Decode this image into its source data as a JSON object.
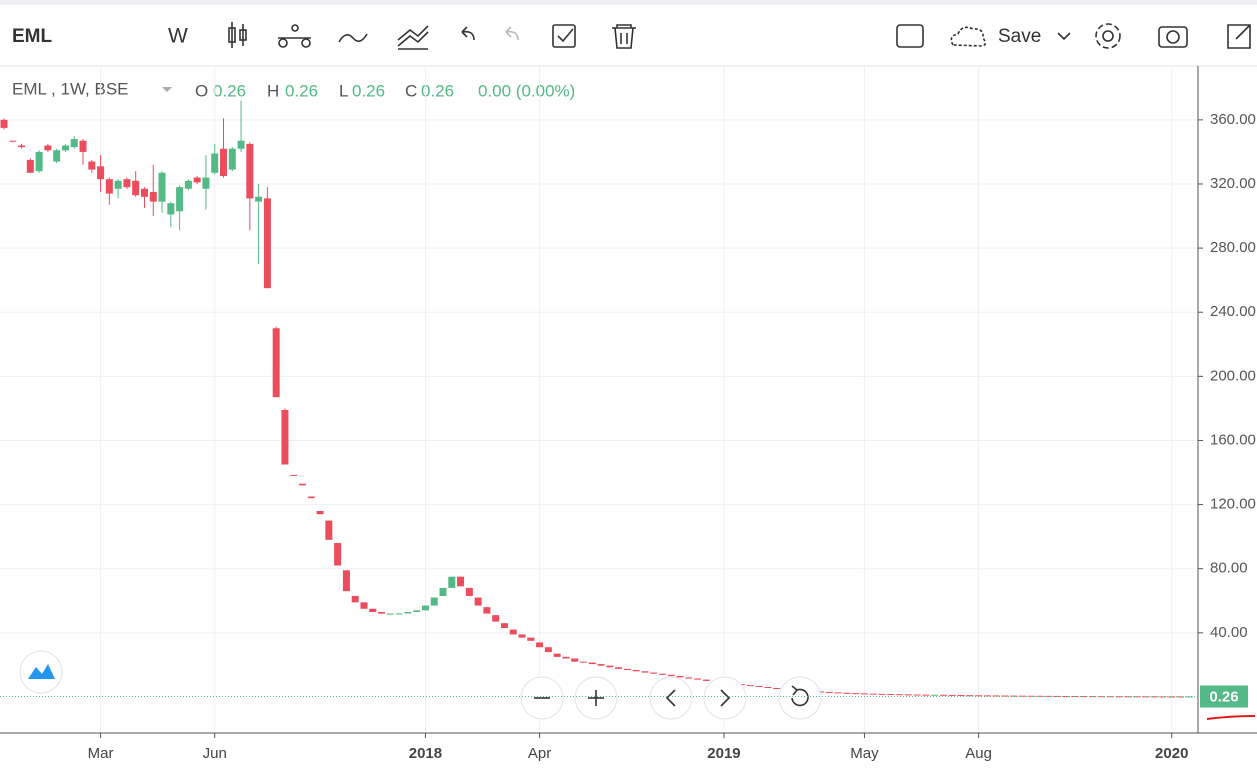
{
  "toolbar": {
    "symbol": "EML",
    "interval": "W",
    "save": "Save"
  },
  "chart_data": {
    "type": "candlestick",
    "legend": {
      "title": "EML , 1W, BSE",
      "open_label": "O",
      "open": 0.26,
      "high_label": "H",
      "high": 0.26,
      "low_label": "L",
      "low": 0.26,
      "close_label": "C",
      "close": 0.26,
      "change": "0.00 (0.00%)"
    },
    "categories": [
      null,
      null,
      null,
      null,
      null,
      null,
      null,
      null,
      null,
      null,
      null,
      "Mar",
      null,
      null,
      null,
      null,
      null,
      null,
      null,
      null,
      null,
      null,
      null,
      null,
      "Jun",
      null,
      null,
      null,
      null,
      null,
      null,
      null,
      null,
      null,
      null,
      null,
      null,
      null,
      null,
      null,
      null,
      null,
      null,
      null,
      null,
      null,
      null,
      null,
      "2018",
      null,
      null,
      null,
      null,
      null,
      null,
      null,
      null,
      null,
      null,
      null,
      null,
      "Apr",
      null,
      null,
      null,
      null,
      null,
      null,
      null,
      null,
      null,
      null,
      null,
      null,
      null,
      null,
      null,
      null,
      null,
      null,
      null,
      null,
      "2019",
      null,
      null,
      null,
      null,
      null,
      null,
      null,
      null,
      null,
      null,
      null,
      null,
      null,
      null,
      null,
      "May",
      null,
      null,
      null,
      null,
      null,
      null,
      null,
      null,
      null,
      null,
      null,
      null,
      "Aug",
      null,
      null,
      null,
      null,
      null,
      null,
      null,
      null,
      null,
      null,
      null,
      null,
      null,
      null,
      null,
      null,
      null,
      null,
      null,
      null,
      null,
      "2020",
      null,
      null
    ],
    "ohlc": [
      [
        360,
        361,
        354,
        355
      ],
      [
        347,
        347,
        346,
        346.5
      ],
      [
        344,
        345,
        342,
        343
      ],
      [
        335,
        336,
        327,
        327
      ],
      [
        328,
        341,
        327,
        340
      ],
      [
        344,
        345,
        340,
        341
      ],
      [
        334,
        342,
        333,
        341
      ],
      [
        341,
        345,
        340,
        344
      ],
      [
        343,
        350,
        342,
        348
      ],
      [
        347,
        348,
        332,
        340
      ],
      [
        334,
        335,
        327,
        329
      ],
      [
        331,
        338,
        315,
        323
      ],
      [
        323,
        324,
        307,
        314
      ],
      [
        317,
        323,
        311,
        322
      ],
      [
        323,
        324,
        317,
        318
      ],
      [
        322,
        328,
        312,
        313
      ],
      [
        317,
        318,
        305,
        312
      ],
      [
        315,
        332,
        300,
        309
      ],
      [
        309,
        328,
        302,
        327
      ],
      [
        301,
        309,
        293,
        308
      ],
      [
        303,
        319,
        291,
        318
      ],
      [
        317,
        323,
        316,
        322
      ],
      [
        324,
        325,
        320,
        321
      ],
      [
        317,
        338,
        304,
        324
      ],
      [
        327,
        345,
        326,
        339
      ],
      [
        342,
        361,
        324,
        325
      ],
      [
        329,
        343,
        328,
        342
      ],
      [
        342,
        372,
        340,
        347
      ],
      [
        345,
        346,
        291,
        311
      ],
      [
        309,
        320,
        270,
        312
      ],
      [
        311,
        318,
        255,
        255
      ],
      [
        230,
        231,
        187,
        187
      ],
      [
        179,
        180,
        145,
        145
      ],
      [
        138.5,
        138.5,
        138,
        138
      ],
      [
        133,
        133,
        132,
        132
      ],
      [
        125,
        125,
        124,
        124
      ],
      [
        116,
        116,
        114,
        114
      ],
      [
        110,
        110,
        98,
        98
      ],
      [
        96,
        96,
        82,
        82
      ],
      [
        79,
        79,
        66,
        66
      ],
      [
        63,
        63,
        59,
        59
      ],
      [
        59,
        59,
        55,
        55
      ],
      [
        55,
        55,
        53,
        53
      ],
      [
        53,
        53,
        52,
        52
      ],
      [
        52,
        52.2,
        51.8,
        52
      ],
      [
        52,
        52.3,
        51.9,
        52.1
      ],
      [
        52.1,
        53,
        52.1,
        53
      ],
      [
        53,
        54,
        53,
        54
      ],
      [
        54,
        57,
        54,
        57
      ],
      [
        57,
        62,
        57,
        62
      ],
      [
        63,
        68,
        63,
        68
      ],
      [
        68,
        75,
        68,
        75
      ],
      [
        75,
        75,
        69,
        69
      ],
      [
        68,
        68,
        63,
        63
      ],
      [
        62,
        62,
        57,
        57
      ],
      [
        56,
        56,
        52,
        52
      ],
      [
        51,
        51,
        47,
        47
      ],
      [
        46,
        46,
        43,
        43
      ],
      [
        42,
        42,
        39,
        39
      ],
      [
        39,
        39,
        37,
        37
      ],
      [
        37,
        37,
        35,
        35
      ],
      [
        34,
        34,
        31,
        31
      ],
      [
        31,
        31,
        28,
        28
      ],
      [
        27,
        27,
        25,
        25
      ],
      [
        25,
        25,
        24,
        24
      ],
      [
        24,
        24,
        22,
        22
      ],
      [
        22,
        22,
        21.5,
        21.5
      ],
      [
        21.5,
        21.5,
        20.5,
        20.5
      ],
      [
        20.5,
        20.5,
        19.5,
        19.5
      ],
      [
        19.5,
        19.5,
        18.5,
        18.5
      ],
      [
        18.5,
        18.5,
        17.5,
        17.5
      ],
      [
        17.5,
        17.5,
        16.8,
        16.8
      ],
      [
        16.8,
        16.8,
        16,
        16
      ],
      [
        16,
        16,
        15.2,
        15.2
      ],
      [
        15.2,
        15.2,
        14.5,
        14.5
      ],
      [
        14.5,
        14.5,
        13.8,
        13.8
      ],
      [
        13.8,
        13.8,
        13,
        13
      ],
      [
        13,
        13,
        12.2,
        12.2
      ],
      [
        12.2,
        12.2,
        11.5,
        11.5
      ],
      [
        11.5,
        11.5,
        10.8,
        10.8
      ],
      [
        10.8,
        10.8,
        10,
        10
      ],
      [
        10,
        10,
        9.3,
        9.3
      ],
      [
        9.3,
        9.3,
        8.6,
        8.6
      ],
      [
        8.6,
        8.6,
        8,
        8
      ],
      [
        8,
        8,
        7.4,
        7.4
      ],
      [
        7.4,
        7.4,
        6.8,
        6.8
      ],
      [
        6.8,
        6.8,
        6.2,
        6.2
      ],
      [
        6.2,
        6.2,
        5.6,
        5.6
      ],
      [
        5.6,
        5.6,
        5.1,
        5.1
      ],
      [
        5.1,
        5.1,
        4.6,
        4.6
      ],
      [
        4.6,
        4.6,
        4.2,
        4.2
      ],
      [
        4.2,
        4.2,
        3.8,
        3.8
      ],
      [
        3.8,
        3.8,
        3.4,
        3.4
      ],
      [
        3.4,
        3.4,
        3.1,
        3.1
      ],
      [
        3.1,
        3.1,
        2.8,
        2.8
      ],
      [
        2.8,
        2.8,
        2.6,
        2.6
      ],
      [
        2.6,
        2.6,
        2.4,
        2.4
      ],
      [
        2.4,
        2.4,
        2.2,
        2.2
      ],
      [
        2.2,
        2.2,
        2.05,
        2.05
      ],
      [
        2.05,
        2.05,
        1.9,
        1.9
      ],
      [
        1.9,
        1.9,
        1.8,
        1.8
      ],
      [
        1.8,
        1.8,
        1.7,
        1.7
      ],
      [
        1.7,
        1.7,
        1.6,
        1.6
      ],
      [
        1.6,
        1.6,
        1.5,
        1.5
      ],
      [
        1.5,
        1.5,
        1.42,
        1.42
      ],
      [
        1.42,
        1.42,
        1.35,
        1.35
      ],
      [
        1.3,
        1.35,
        1.3,
        1.35
      ],
      [
        1.35,
        1.35,
        1.25,
        1.25
      ],
      [
        1.25,
        1.25,
        1.18,
        1.18
      ],
      [
        1.18,
        1.18,
        1.1,
        1.1
      ],
      [
        1.1,
        1.1,
        1.04,
        1.04
      ],
      [
        1.04,
        1.04,
        0.98,
        0.98
      ],
      [
        0.98,
        0.98,
        0.92,
        0.92
      ],
      [
        0.92,
        0.92,
        0.87,
        0.87
      ],
      [
        0.87,
        0.87,
        0.82,
        0.82
      ],
      [
        0.82,
        0.82,
        0.78,
        0.78
      ],
      [
        0.78,
        0.78,
        0.74,
        0.74
      ],
      [
        0.74,
        0.74,
        0.7,
        0.7
      ],
      [
        0.7,
        0.7,
        0.66,
        0.66
      ],
      [
        0.66,
        0.66,
        0.62,
        0.62
      ],
      [
        0.62,
        0.62,
        0.58,
        0.58
      ],
      [
        0.58,
        0.58,
        0.55,
        0.55
      ],
      [
        0.55,
        0.55,
        0.52,
        0.52
      ],
      [
        0.52,
        0.52,
        0.49,
        0.49
      ],
      [
        0.49,
        0.49,
        0.46,
        0.46
      ],
      [
        0.46,
        0.46,
        0.43,
        0.43
      ],
      [
        0.43,
        0.43,
        0.41,
        0.41
      ],
      [
        0.41,
        0.41,
        0.39,
        0.39
      ],
      [
        0.39,
        0.39,
        0.37,
        0.37
      ],
      [
        0.37,
        0.37,
        0.35,
        0.35
      ],
      [
        0.35,
        0.35,
        0.33,
        0.33
      ],
      [
        0.33,
        0.33,
        0.31,
        0.31
      ],
      [
        0.31,
        0.31,
        0.3,
        0.3
      ],
      [
        0.3,
        0.3,
        0.28,
        0.28
      ],
      [
        0.28,
        0.28,
        0.27,
        0.27
      ],
      [
        0.26,
        0.26,
        0.26,
        0.26
      ]
    ],
    "up_color": "#53b987",
    "down_color": "#eb4d5c",
    "ylim": [
      -22.5,
      393.6
    ],
    "yticks": [
      {
        "value": 40,
        "label": "40.00"
      },
      {
        "value": 80,
        "label": "80.00"
      },
      {
        "value": 120,
        "label": "120.00"
      },
      {
        "value": 160,
        "label": "160.00"
      },
      {
        "value": 200,
        "label": "200.00"
      },
      {
        "value": 240,
        "label": "240.00"
      },
      {
        "value": 280,
        "label": "280.00"
      },
      {
        "value": 320,
        "label": "320.00"
      },
      {
        "value": 360,
        "label": "360.00"
      }
    ],
    "grid": true,
    "last_price": 0.26
  }
}
